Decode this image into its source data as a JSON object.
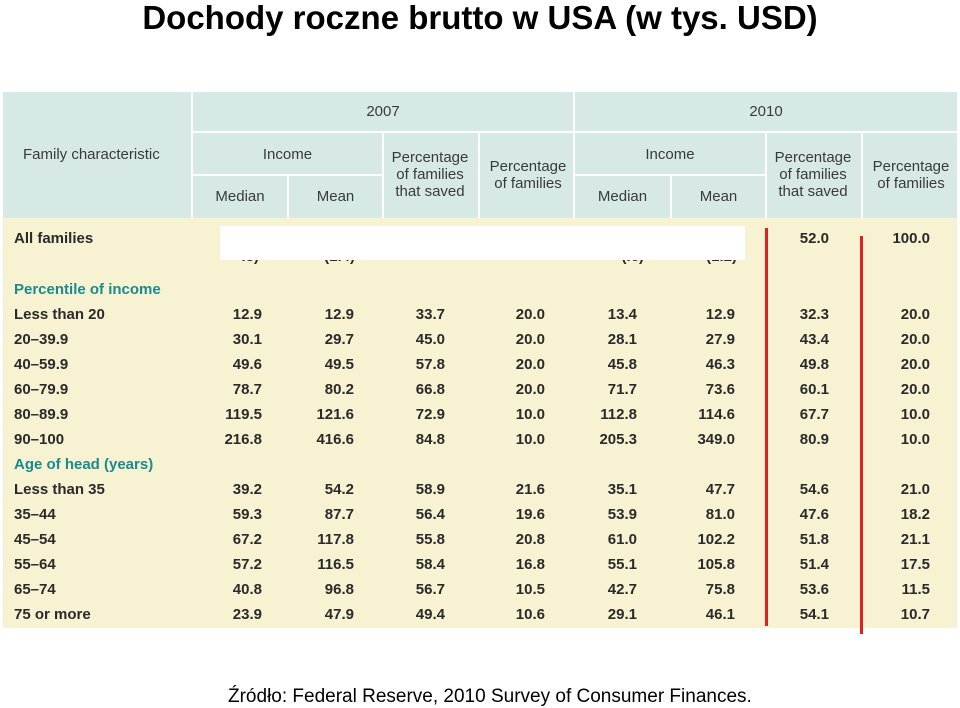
{
  "title": "Dochody roczne brutto w USA (w tys. USD)",
  "source": "Źródło: Federal Reserve, 2010 Survey of Consumer Finances.",
  "header": {
    "family_characteristic": "Family characteristic",
    "year_2007": "2007",
    "year_2010": "2010",
    "income": "Income",
    "median": "Median",
    "mean": "Mean",
    "pct_saved": "Percentage of families that saved",
    "pct_families": "Percentage of families"
  },
  "all_families": {
    "label": "All families",
    "values": [
      "",
      "",
      "",
      "",
      "",
      "",
      "52.0",
      "100.0"
    ],
    "sub": [
      ".8)",
      "(1.4)",
      "",
      "",
      "(.6)",
      "(1.2)",
      "",
      ""
    ]
  },
  "sections": [
    {
      "title": "Percentile of income",
      "rows": [
        {
          "label": "Less than 20",
          "values": [
            "12.9",
            "12.9",
            "33.7",
            "20.0",
            "13.4",
            "12.9",
            "32.3",
            "20.0"
          ]
        },
        {
          "label": "20–39.9",
          "values": [
            "30.1",
            "29.7",
            "45.0",
            "20.0",
            "28.1",
            "27.9",
            "43.4",
            "20.0"
          ]
        },
        {
          "label": "40–59.9",
          "values": [
            "49.6",
            "49.5",
            "57.8",
            "20.0",
            "45.8",
            "46.3",
            "49.8",
            "20.0"
          ]
        },
        {
          "label": "60–79.9",
          "values": [
            "78.7",
            "80.2",
            "66.8",
            "20.0",
            "71.7",
            "73.6",
            "60.1",
            "20.0"
          ]
        },
        {
          "label": "80–89.9",
          "values": [
            "119.5",
            "121.6",
            "72.9",
            "10.0",
            "112.8",
            "114.6",
            "67.7",
            "10.0"
          ]
        },
        {
          "label": "90–100",
          "values": [
            "216.8",
            "416.6",
            "84.8",
            "10.0",
            "205.3",
            "349.0",
            "80.9",
            "10.0"
          ]
        }
      ]
    },
    {
      "title": "Age of head (years)",
      "rows": [
        {
          "label": "Less than 35",
          "values": [
            "39.2",
            "54.2",
            "58.9",
            "21.6",
            "35.1",
            "47.7",
            "54.6",
            "21.0"
          ]
        },
        {
          "label": "35–44",
          "values": [
            "59.3",
            "87.7",
            "56.4",
            "19.6",
            "53.9",
            "81.0",
            "47.6",
            "18.2"
          ]
        },
        {
          "label": "45–54",
          "values": [
            "67.2",
            "117.8",
            "55.8",
            "20.8",
            "61.0",
            "102.2",
            "51.8",
            "21.1"
          ]
        },
        {
          "label": "55–64",
          "values": [
            "57.2",
            "116.5",
            "58.4",
            "16.8",
            "55.1",
            "105.8",
            "51.4",
            "17.5"
          ]
        },
        {
          "label": "65–74",
          "values": [
            "40.8",
            "96.8",
            "56.7",
            "10.5",
            "42.7",
            "75.8",
            "53.6",
            "11.5"
          ]
        },
        {
          "label": "75 or more",
          "values": [
            "23.9",
            "47.9",
            "49.4",
            "10.6",
            "29.1",
            "46.1",
            "54.1",
            "10.7"
          ]
        }
      ]
    }
  ],
  "colors": {
    "header_bg": "#d6e9e5",
    "body_bg": "#f6f2d2",
    "section_title": "#1a8a8f",
    "marker": "#e02020"
  }
}
